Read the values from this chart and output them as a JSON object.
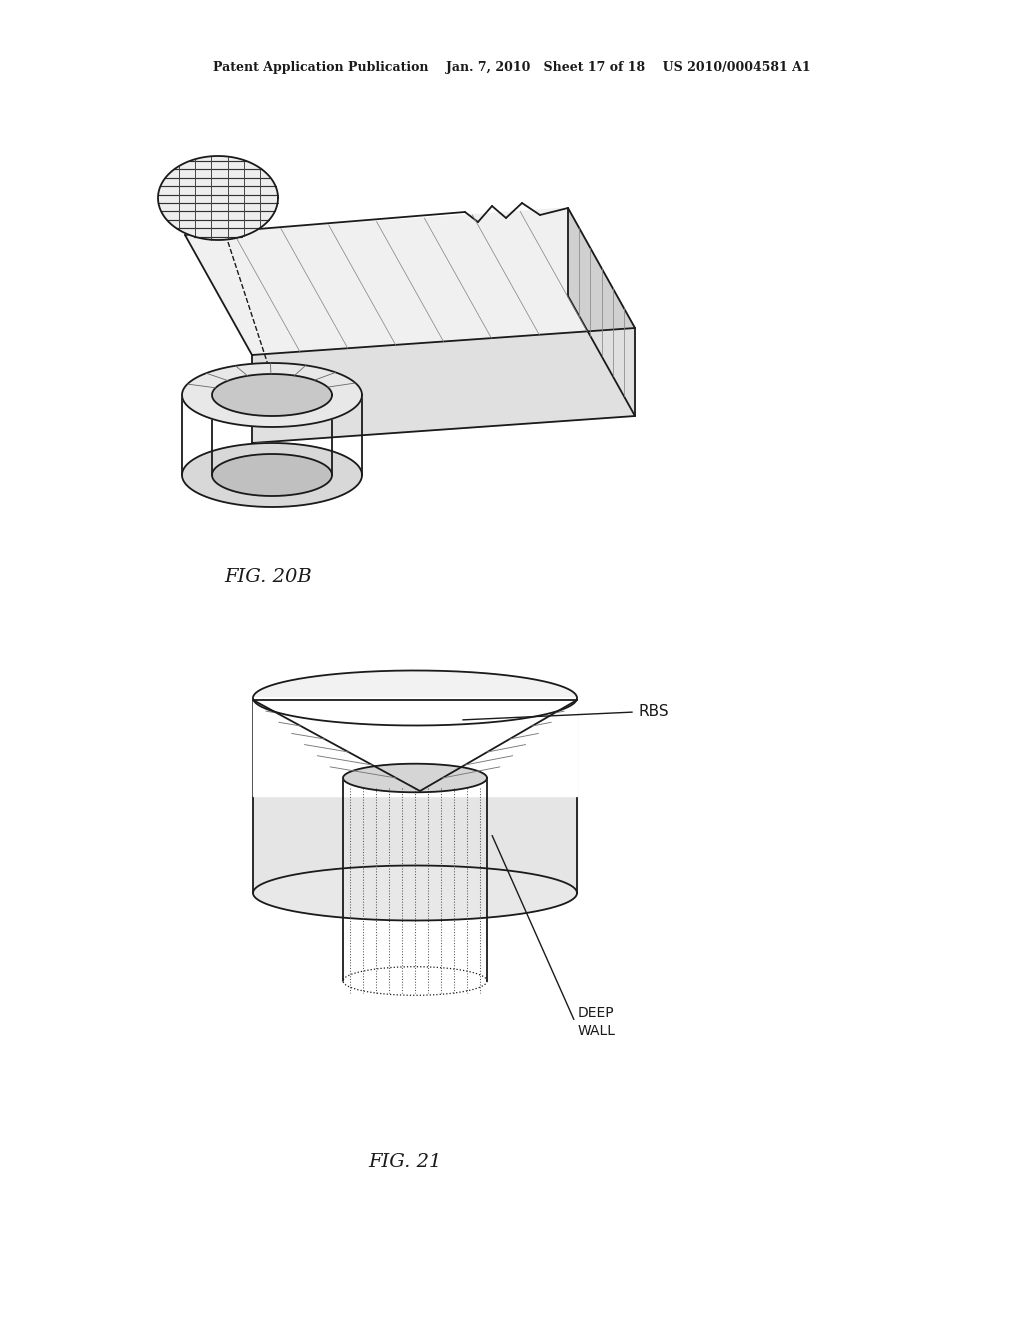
{
  "background_color": "#ffffff",
  "line_color": "#1a1a1a",
  "header": "Patent Application Publication    Jan. 7, 2010   Sheet 17 of 18    US 2010/0004581 A1",
  "fig20b_label": "FIG. 20B",
  "fig21_label": "FIG. 21",
  "rbs_label": "RBS",
  "deepwall_label": "DEEP\nWALL"
}
